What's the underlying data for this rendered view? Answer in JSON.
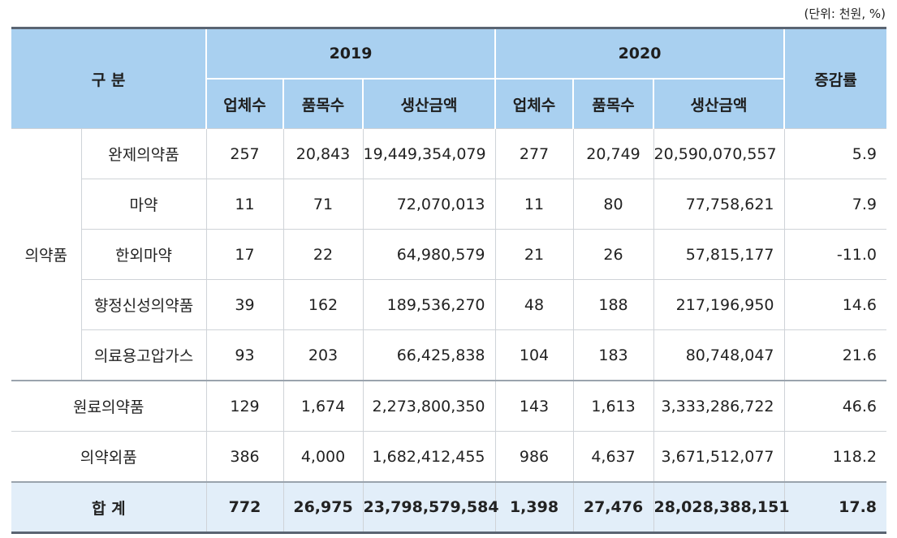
{
  "unit_note": "(단위: 천원, %)",
  "header": {
    "category": "구 분",
    "year1": "2019",
    "year2": "2020",
    "change": "증감률",
    "sub": [
      "업체수",
      "품목수",
      "생산금액",
      "업체수",
      "품목수",
      "생산금액"
    ]
  },
  "group_label": "의약품",
  "group_rows": [
    {
      "name": "완제의약품",
      "v": [
        "257",
        "20,843",
        "19,449,354,079",
        "277",
        "20,749",
        "20,590,070,557",
        "5.9"
      ]
    },
    {
      "name": "마약",
      "v": [
        "11",
        "71",
        "72,070,013",
        "11",
        "80",
        "77,758,621",
        "7.9"
      ]
    },
    {
      "name": "한외마약",
      "v": [
        "17",
        "22",
        "64,980,579",
        "21",
        "26",
        "57,815,177",
        "-11.0"
      ]
    },
    {
      "name": "향정신성의약품",
      "v": [
        "39",
        "162",
        "189,536,270",
        "48",
        "188",
        "217,196,950",
        "14.6"
      ]
    },
    {
      "name": "의료용고압가스",
      "v": [
        "93",
        "203",
        "66,425,838",
        "104",
        "183",
        "80,748,047",
        "21.6"
      ]
    }
  ],
  "other_rows": [
    {
      "name": "원료의약품",
      "v": [
        "129",
        "1,674",
        "2,273,800,350",
        "143",
        "1,613",
        "3,333,286,722",
        "46.6"
      ]
    },
    {
      "name": "의약외품",
      "v": [
        "386",
        "4,000",
        "1,682,412,455",
        "986",
        "4,637",
        "3,671,512,077",
        "118.2"
      ]
    }
  ],
  "total": {
    "name": "합 계",
    "v": [
      "772",
      "26,975",
      "23,798,579,584",
      "1,398",
      "27,476",
      "28,028,388,151",
      "17.8"
    ]
  }
}
